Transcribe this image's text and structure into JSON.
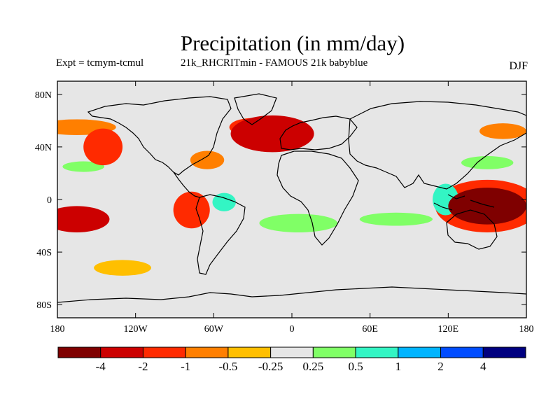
{
  "header": {
    "title": "Precipitation (in mm/day)",
    "experiment": "Expt = tcmym-tcmul",
    "comparison": "21k_RHCRITmin - FAMOUS 21k babyblue",
    "season": "DJF"
  },
  "axes": {
    "y_ticks": [
      "80N",
      "40N",
      "0",
      "40S",
      "80S"
    ],
    "x_ticks": [
      "180",
      "120W",
      "60W",
      "0",
      "60E",
      "120E",
      "180"
    ]
  },
  "colorbar": {
    "labels": [
      "-4",
      "-2",
      "-1",
      "-0.5",
      "-0.25",
      "0.25",
      "0.5",
      "1",
      "2",
      "4"
    ],
    "colors": [
      "#7f0000",
      "#cc0000",
      "#ff2a00",
      "#ff7f00",
      "#ffbf00",
      "#e6e6e6",
      "#80ff66",
      "#33f5c4",
      "#00b4ff",
      "#004cff",
      "#000080"
    ]
  },
  "chart_data": {
    "type": "heatmap",
    "title": "Precipitation (in mm/day)",
    "variable": "precipitation difference",
    "units": "mm/day",
    "season": "DJF",
    "lon_range": [
      -180,
      180
    ],
    "lat_range": [
      -90,
      90
    ],
    "levels": [
      -4,
      -2,
      -1,
      -0.5,
      -0.25,
      0.25,
      0.5,
      1,
      2,
      4
    ],
    "anomalies": [
      {
        "name": "north-atlantic-drying",
        "lon": -15,
        "lat": 50,
        "rx": 32,
        "ry": 14,
        "value": -2
      },
      {
        "name": "north-atlantic-drying-west",
        "lon": -30,
        "lat": 55,
        "rx": 18,
        "ry": 7,
        "value": -1
      },
      {
        "name": "northeast-pacific-drying",
        "lon": -145,
        "lat": 40,
        "rx": 15,
        "ry": 14,
        "value": -1
      },
      {
        "name": "north-pacific-band",
        "lon": -165,
        "lat": 55,
        "rx": 30,
        "ry": 6,
        "value": -0.5
      },
      {
        "name": "west-pacific-drying",
        "lon": 150,
        "lat": -5,
        "rx": 30,
        "ry": 14,
        "value": -4
      },
      {
        "name": "west-pacific-drying-outer",
        "lon": 150,
        "lat": -5,
        "rx": 40,
        "ry": 20,
        "value": -1
      },
      {
        "name": "south-pacific-drying",
        "lon": -165,
        "lat": -15,
        "rx": 25,
        "ry": 10,
        "value": -2
      },
      {
        "name": "amazon-drying",
        "lon": -77,
        "lat": -8,
        "rx": 14,
        "ry": 14,
        "value": -1
      },
      {
        "name": "caribbean-drying",
        "lon": -65,
        "lat": 30,
        "rx": 13,
        "ry": 7,
        "value": -0.5
      },
      {
        "name": "southern-ocean-drying",
        "lon": -130,
        "lat": -52,
        "rx": 22,
        "ry": 6,
        "value": -0.25
      },
      {
        "name": "east-asia-drying",
        "lon": 162,
        "lat": 52,
        "rx": 18,
        "ry": 6,
        "value": -0.5
      },
      {
        "name": "south-atlantic-wetting",
        "lon": 5,
        "lat": -18,
        "rx": 30,
        "ry": 7,
        "value": 0.5
      },
      {
        "name": "indian-ocean-wetting",
        "lon": 80,
        "lat": -15,
        "rx": 28,
        "ry": 5,
        "value": 0.5
      },
      {
        "name": "amazon-wetting",
        "lon": -52,
        "lat": -2,
        "rx": 9,
        "ry": 7,
        "value": 1
      },
      {
        "name": "maritime-continent-wetting",
        "lon": 118,
        "lat": 0,
        "rx": 10,
        "ry": 12,
        "value": 1
      },
      {
        "name": "north-pacific-wetting",
        "lon": -160,
        "lat": 25,
        "rx": 16,
        "ry": 4,
        "value": 0.5
      },
      {
        "name": "northwest-pacific-wetting",
        "lon": 150,
        "lat": 28,
        "rx": 20,
        "ry": 5,
        "value": 0.5
      }
    ]
  }
}
